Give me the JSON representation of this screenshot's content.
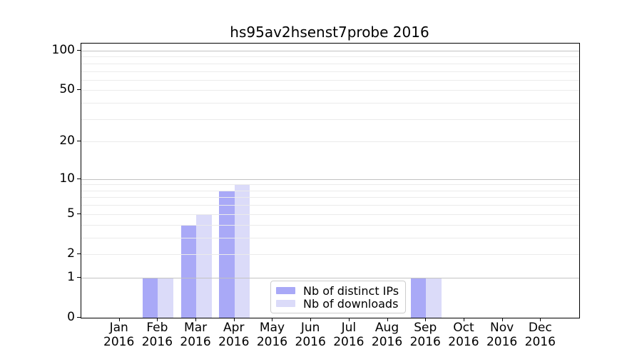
{
  "title": "hs95av2hsenst7probe 2016",
  "axes": {
    "x_year": "2016",
    "months": [
      "Jan",
      "Feb",
      "Mar",
      "Apr",
      "May",
      "Jun",
      "Jul",
      "Aug",
      "Sep",
      "Oct",
      "Nov",
      "Dec"
    ],
    "y_tick_labels": [
      "0",
      "1",
      "2",
      "5",
      "10",
      "20",
      "50",
      "100"
    ]
  },
  "chart_data": {
    "type": "bar",
    "title": "hs95av2hsenst7probe 2016",
    "xlabel": "",
    "ylabel": "",
    "y_scale": "log1p",
    "grid": true,
    "legend_position": "lower center",
    "categories": [
      "Jan 2016",
      "Feb 2016",
      "Mar 2016",
      "Apr 2016",
      "May 2016",
      "Jun 2016",
      "Jul 2016",
      "Aug 2016",
      "Sep 2016",
      "Oct 2016",
      "Nov 2016",
      "Dec 2016"
    ],
    "series": [
      {
        "name": "Nb of distinct IPs",
        "color": "#a9a9f7",
        "values": [
          0,
          1,
          4,
          8,
          0,
          0,
          0,
          0,
          1,
          0,
          0,
          0
        ]
      },
      {
        "name": "Nb of downloads",
        "color": "#dbdbf9",
        "values": [
          0,
          1,
          5,
          9,
          0,
          0,
          0,
          0,
          1,
          0,
          0,
          0
        ]
      }
    ],
    "yticks": [
      0,
      1,
      2,
      5,
      10,
      20,
      50,
      100
    ],
    "major_gridlines": [
      1,
      10,
      100
    ],
    "minor_gridlines": [
      2,
      3,
      4,
      5,
      6,
      7,
      8,
      9,
      20,
      30,
      40,
      50,
      60,
      70,
      80,
      90
    ],
    "ylim": [
      0,
      113
    ]
  },
  "colors": {
    "bar_distinct_ips": "#a9a9f7",
    "bar_downloads": "#dbdbf9",
    "grid_major": "#c2c2c2",
    "grid_minor": "#ebebeb",
    "spine": "#000000",
    "background": "#ffffff",
    "legend_border": "#cccccc"
  }
}
